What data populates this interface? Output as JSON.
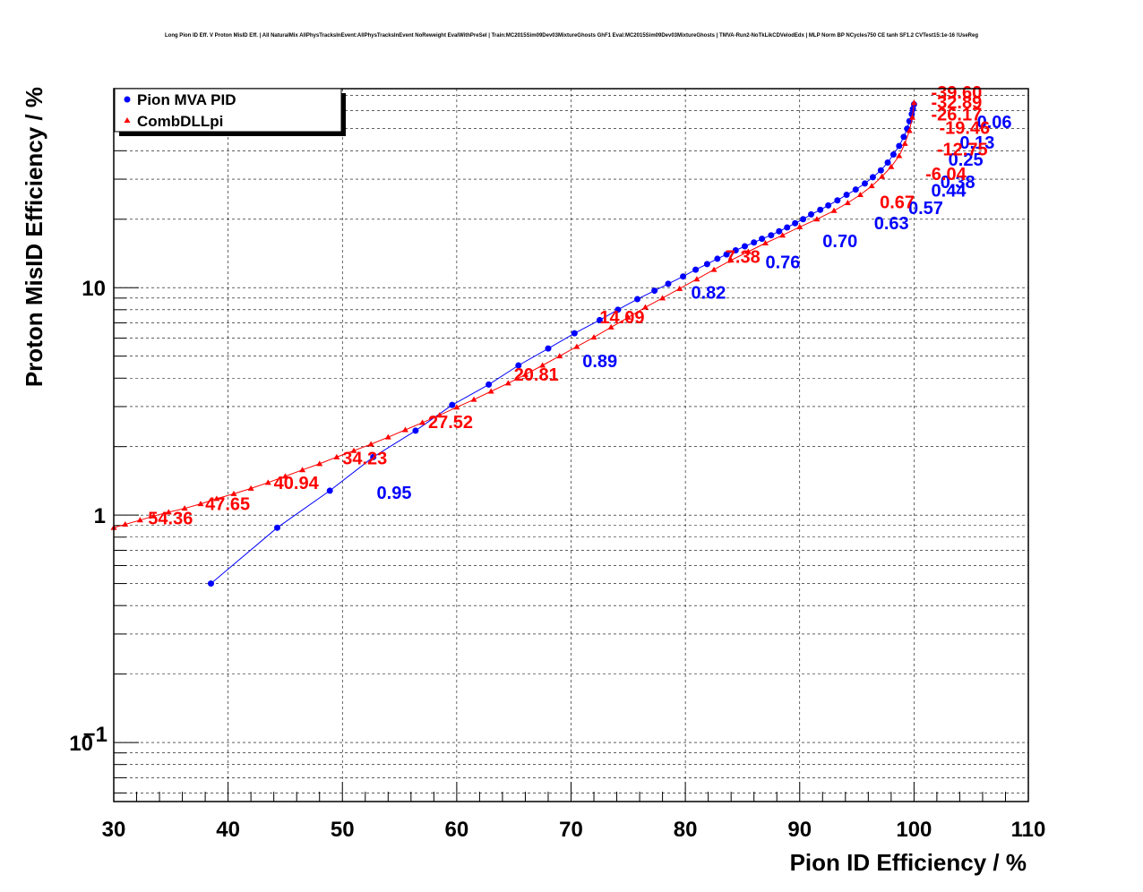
{
  "title": "Long Pion ID Eff. V Proton MisID Eff. | All NaturalMix AllPhysTracksInEvent:AllPhysTracksInEvent NoReweight EvalWithPreSel | Train:MC2015Sim09Dev03MixtureGhosts GhF1 Eval:MC2015Sim09Dev03MixtureGhosts | TMVA-Run2-NoTkLikCDVelodEdx | MLP Norm BP NCycles750 CE tanh SF1.2 CVTest15:1e-16 !UseReg",
  "colors": {
    "pion_mva": "#0000ff",
    "combdll": "#ff0000",
    "grid": "#000000"
  },
  "chart_data": {
    "type": "scatter",
    "xlabel": "Pion ID Efficiency / %",
    "ylabel": "Proton MisID Efficiency / %",
    "xlim": [
      30,
      110
    ],
    "ylim": [
      0.055,
      75
    ],
    "yscale": "log",
    "grid": true,
    "legend_position": "top-left",
    "x_ticks": [
      30,
      40,
      50,
      60,
      70,
      80,
      90,
      100,
      110
    ],
    "x_tick_labels": [
      "30",
      "40",
      "50",
      "60",
      "70",
      "80",
      "90",
      "100",
      "110"
    ],
    "y_ticks": [
      0.1,
      1,
      10
    ],
    "y_tick_labels": [
      [
        "10",
        "−1"
      ],
      [
        "1",
        ""
      ],
      [
        "10",
        ""
      ]
    ],
    "series": [
      {
        "name": "Pion MVA PID",
        "marker": "circle",
        "color": "#0000ff",
        "x": [
          38.5,
          44.3,
          48.9,
          52.7,
          56.4,
          59.6,
          62.8,
          65.4,
          68.0,
          70.3,
          72.5,
          74.1,
          75.8,
          77.3,
          78.5,
          79.8,
          80.9,
          81.9,
          82.8,
          83.6,
          84.4,
          85.2,
          86.0,
          86.7,
          87.5,
          88.2,
          88.9,
          89.6,
          90.3,
          91.0,
          91.8,
          92.5,
          93.3,
          94.1,
          94.9,
          95.7,
          96.4,
          97.1,
          97.7,
          98.2,
          98.7,
          99.1,
          99.4,
          99.6,
          99.8,
          99.9,
          100.0
        ],
        "y": [
          0.5,
          0.88,
          1.28,
          1.8,
          2.35,
          3.05,
          3.75,
          4.55,
          5.4,
          6.3,
          7.2,
          8.0,
          8.9,
          9.7,
          10.4,
          11.2,
          12.0,
          12.7,
          13.4,
          14.0,
          14.6,
          15.2,
          15.8,
          16.4,
          17.0,
          17.7,
          18.4,
          19.2,
          20.0,
          21.0,
          22.0,
          23.0,
          24.2,
          25.6,
          27.0,
          28.7,
          30.6,
          32.8,
          35.5,
          38.5,
          42.0,
          46.0,
          50.0,
          54.0,
          58.0,
          61.0,
          64.0
        ],
        "cut_labels": [
          {
            "text": "0.95",
            "x": 53.0,
            "y": 1.27
          },
          {
            "text": "0.89",
            "x": 71.0,
            "y": 4.8
          },
          {
            "text": "0.82",
            "x": 80.5,
            "y": 9.6
          },
          {
            "text": "0.76",
            "x": 87.0,
            "y": 13.1
          },
          {
            "text": "0.70",
            "x": 92.0,
            "y": 16.2
          },
          {
            "text": "0.63",
            "x": 96.5,
            "y": 19.4
          },
          {
            "text": "0.57",
            "x": 99.5,
            "y": 22.7
          },
          {
            "text": "0.44",
            "x": 101.5,
            "y": 27.0
          },
          {
            "text": "0.38",
            "x": 102.3,
            "y": 29.5
          },
          {
            "text": "0.25",
            "x": 103.0,
            "y": 37.0
          },
          {
            "text": "0.13",
            "x": 104.0,
            "y": 44.0
          },
          {
            "text": "0.06",
            "x": 105.5,
            "y": 54.0
          }
        ]
      },
      {
        "name": "CombDLLpi",
        "marker": "triangle",
        "color": "#ff0000",
        "x": [
          30.0,
          31.0,
          32.3,
          33.5,
          34.8,
          36.2,
          37.6,
          39.0,
          40.5,
          42.0,
          43.5,
          45.0,
          46.5,
          48.0,
          49.5,
          51.0,
          52.5,
          54.0,
          55.5,
          57.0,
          58.5,
          60.0,
          61.5,
          63.0,
          64.5,
          66.0,
          67.5,
          69.0,
          70.5,
          72.0,
          73.5,
          75.0,
          76.5,
          78.0,
          79.5,
          81.0,
          82.5,
          84.0,
          85.5,
          87.0,
          88.5,
          90.0,
          91.5,
          93.0,
          94.2,
          95.3,
          96.3,
          97.2,
          98.0,
          98.7,
          99.2,
          99.6,
          99.85,
          100.0
        ],
        "y": [
          0.88,
          0.91,
          0.95,
          0.99,
          1.03,
          1.07,
          1.12,
          1.18,
          1.24,
          1.31,
          1.39,
          1.48,
          1.58,
          1.68,
          1.8,
          1.92,
          2.05,
          2.2,
          2.37,
          2.55,
          2.75,
          2.98,
          3.22,
          3.5,
          3.8,
          4.15,
          4.55,
          5.0,
          5.5,
          6.05,
          6.7,
          7.4,
          8.2,
          9.0,
          9.9,
          10.9,
          12.0,
          13.2,
          14.4,
          15.7,
          17.0,
          18.5,
          20.0,
          21.8,
          23.6,
          25.6,
          28.0,
          30.8,
          34.0,
          38.0,
          43.0,
          49.0,
          56.0,
          65.0
        ],
        "cut_labels": [
          {
            "text": "54.36",
            "x": 33.0,
            "y": 0.98
          },
          {
            "text": "47.65",
            "x": 38.0,
            "y": 1.13
          },
          {
            "text": "40.94",
            "x": 44.0,
            "y": 1.4
          },
          {
            "text": "34.23",
            "x": 50.0,
            "y": 1.8
          },
          {
            "text": "27.52",
            "x": 57.5,
            "y": 2.6
          },
          {
            "text": "20.81",
            "x": 65.0,
            "y": 4.2
          },
          {
            "text": "14.09",
            "x": 72.5,
            "y": 7.5
          },
          {
            "text": "7.38",
            "x": 83.5,
            "y": 13.8
          },
          {
            "text": "0.67",
            "x": 97.0,
            "y": 24.0
          },
          {
            "text": "-6.04",
            "x": 101.0,
            "y": 32.0
          },
          {
            "text": "-12.75",
            "x": 102.0,
            "y": 41.0
          },
          {
            "text": "-19.46",
            "x": 102.2,
            "y": 51.0
          },
          {
            "text": "-26.17",
            "x": 101.5,
            "y": 58.5
          },
          {
            "text": "-32.89",
            "x": 101.5,
            "y": 66.0
          },
          {
            "text": "-39.60",
            "x": 101.5,
            "y": 73.0
          }
        ]
      }
    ]
  }
}
